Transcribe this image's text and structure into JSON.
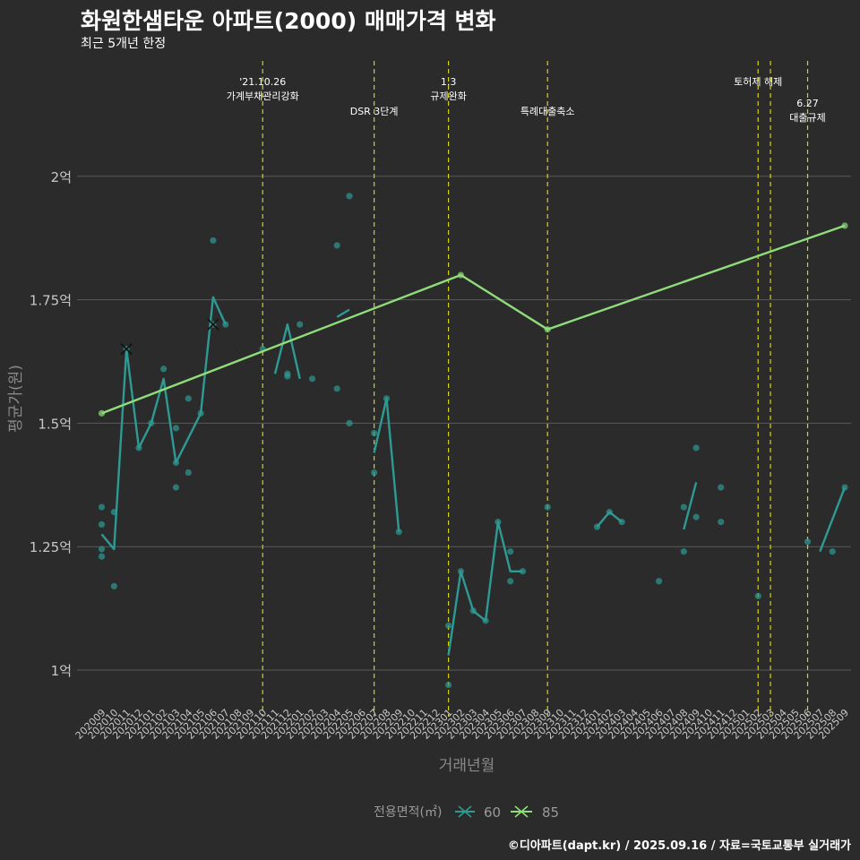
{
  "title": "화원한샘타운 아파트(2000) 매매가격 변화",
  "subtitle": "최근 5개년 한정",
  "caption": "©디아파트(dapt.kr) / 2025.09.16 / 자료=국토교통부 실거래가",
  "colors": {
    "background": "#2b2b2b",
    "grid": "#5a5a5a",
    "s60": "#2e9a94",
    "s85": "#8fdd7a",
    "event": "#d4d40a",
    "axis_text": "#c8c8c8"
  },
  "chart_data": {
    "type": "line",
    "xlabel": "거래년월",
    "ylabel": "평균가(원)",
    "x_ticks": [
      "202009",
      "202010",
      "202011",
      "202012",
      "202101",
      "202102",
      "202103",
      "202104",
      "202105",
      "202106",
      "202107",
      "202108",
      "202109",
      "202110",
      "202111",
      "202112",
      "202201",
      "202202",
      "202203",
      "202204",
      "202205",
      "202206",
      "202207",
      "202208",
      "202209",
      "202210",
      "202211",
      "202212",
      "202301",
      "202302",
      "202303",
      "202304",
      "202305",
      "202306",
      "202307",
      "202308",
      "202309",
      "202310",
      "202311",
      "202312",
      "202401",
      "202402",
      "202403",
      "202404",
      "202405",
      "202406",
      "202407",
      "202408",
      "202409",
      "202410",
      "202411",
      "202412",
      "202501",
      "202502",
      "202503",
      "202504",
      "202505",
      "202506",
      "202507",
      "202508",
      "202509"
    ],
    "y_ticks": [
      {
        "value": 1.0,
        "label": "1억"
      },
      {
        "value": 1.25,
        "label": "1.25억"
      },
      {
        "value": 1.5,
        "label": "1.5억"
      },
      {
        "value": 1.75,
        "label": "1.75억"
      },
      {
        "value": 2.0,
        "label": "2억"
      }
    ],
    "ylim": [
      0.92,
      2.12
    ],
    "legend": {
      "title": "전용면적(㎡)",
      "position": "bottom",
      "items": [
        "60",
        "85"
      ]
    },
    "events": [
      {
        "x": "202110",
        "label_lines": [
          "'21.10.26",
          "가계부채관리강화"
        ],
        "row": 0
      },
      {
        "x": "202207",
        "label_lines": [
          "DSR 3단계"
        ],
        "row": 1
      },
      {
        "x": "202301",
        "label_lines": [
          "1.3",
          "규제완화"
        ],
        "row": 0
      },
      {
        "x": "202309",
        "label_lines": [
          "특례대출축소"
        ],
        "row": 1
      },
      {
        "x": "202502",
        "label_lines": [
          "토허제 해제"
        ],
        "row": 0
      },
      {
        "x": "202503",
        "label_lines": [],
        "row": 0
      },
      {
        "x": "202506",
        "label_lines": [
          "6.27",
          "대출규제"
        ],
        "row": 0.7
      }
    ],
    "series": [
      {
        "name": "60",
        "line_segments": [
          [
            [
              "202009",
              1.275
            ],
            [
              "202010",
              1.245
            ],
            [
              "202011",
              1.65
            ],
            [
              "202012",
              1.45
            ],
            [
              "202101",
              1.5
            ],
            [
              "202102",
              1.59
            ],
            [
              "202103",
              1.42
            ],
            [
              "202104",
              1.47
            ],
            [
              "202105",
              1.52
            ],
            [
              "202106",
              1.755
            ],
            [
              "202107",
              1.7
            ]
          ],
          [
            [
              "202111",
              1.6
            ],
            [
              "202112",
              1.7
            ],
            [
              "202201",
              1.59
            ]
          ],
          [
            [
              "202204",
              1.715
            ],
            [
              "202205",
              1.73
            ]
          ],
          [
            [
              "202207",
              1.44
            ],
            [
              "202208",
              1.55
            ],
            [
              "202209",
              1.28
            ]
          ],
          [
            [
              "202301",
              1.03
            ],
            [
              "202302",
              1.2
            ],
            [
              "202303",
              1.12
            ],
            [
              "202304",
              1.1
            ],
            [
              "202305",
              1.3
            ],
            [
              "202306",
              1.2
            ],
            [
              "202307",
              1.2
            ]
          ],
          [
            [
              "202401",
              1.29
            ],
            [
              "202402",
              1.32
            ],
            [
              "202403",
              1.3
            ]
          ],
          [
            [
              "202408",
              1.285
            ],
            [
              "202409",
              1.38
            ]
          ],
          [
            [
              "202507",
              1.24
            ],
            [
              "202509",
              1.37
            ]
          ]
        ],
        "points": [
          [
            "202009",
            1.33
          ],
          [
            "202009",
            1.295
          ],
          [
            "202009",
            1.245
          ],
          [
            "202009",
            1.23
          ],
          [
            "202010",
            1.32
          ],
          [
            "202010",
            1.17
          ],
          [
            "202011",
            1.65
          ],
          [
            "202012",
            1.45
          ],
          [
            "202101",
            1.5
          ],
          [
            "202102",
            1.61
          ],
          [
            "202103",
            1.49
          ],
          [
            "202103",
            1.42
          ],
          [
            "202103",
            1.37
          ],
          [
            "202104",
            1.55
          ],
          [
            "202104",
            1.4
          ],
          [
            "202105",
            1.52
          ],
          [
            "202106",
            1.87
          ],
          [
            "202106",
            1.7
          ],
          [
            "202107",
            1.7
          ],
          [
            "202110",
            1.65
          ],
          [
            "202112",
            1.6
          ],
          [
            "202112",
            1.595
          ],
          [
            "202201",
            1.7
          ],
          [
            "202202",
            1.59
          ],
          [
            "202204",
            1.86
          ],
          [
            "202204",
            1.57
          ],
          [
            "202205",
            1.96
          ],
          [
            "202205",
            1.5
          ],
          [
            "202207",
            1.48
          ],
          [
            "202207",
            1.4
          ],
          [
            "202208",
            1.55
          ],
          [
            "202209",
            1.28
          ],
          [
            "202301",
            1.09
          ],
          [
            "202301",
            0.97
          ],
          [
            "202302",
            1.2
          ],
          [
            "202303",
            1.12
          ],
          [
            "202304",
            1.1
          ],
          [
            "202305",
            1.3
          ],
          [
            "202306",
            1.24
          ],
          [
            "202306",
            1.18
          ],
          [
            "202307",
            1.2
          ],
          [
            "202309",
            1.33
          ],
          [
            "202401",
            1.29
          ],
          [
            "202402",
            1.32
          ],
          [
            "202403",
            1.3
          ],
          [
            "202406",
            1.18
          ],
          [
            "202408",
            1.33
          ],
          [
            "202408",
            1.24
          ],
          [
            "202409",
            1.45
          ],
          [
            "202409",
            1.31
          ],
          [
            "202411",
            1.37
          ],
          [
            "202411",
            1.3
          ],
          [
            "202502",
            1.15
          ],
          [
            "202506",
            1.26
          ],
          [
            "202508",
            1.24
          ],
          [
            "202509",
            1.37
          ]
        ],
        "cross_points": [
          [
            "202011",
            1.65
          ],
          [
            "202106",
            1.7
          ]
        ]
      },
      {
        "name": "85",
        "line_segments": [
          [
            [
              "202009",
              1.52
            ],
            [
              "202302",
              1.8
            ],
            [
              "202309",
              1.69
            ],
            [
              "202509",
              1.9
            ]
          ]
        ],
        "points": [
          [
            "202009",
            1.52
          ],
          [
            "202302",
            1.8
          ],
          [
            "202309",
            1.69
          ],
          [
            "202509",
            1.9
          ]
        ],
        "cross_points": []
      }
    ]
  }
}
